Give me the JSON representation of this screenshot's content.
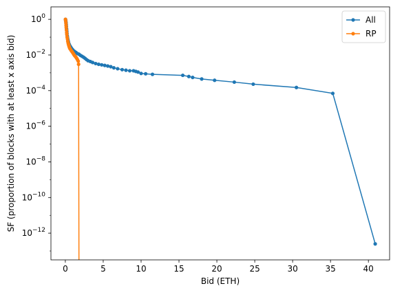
{
  "chart_data": {
    "type": "line",
    "title": "",
    "xlabel": "Bid (ETH)",
    "ylabel": "SF (proportion of blocks with at least x axis bid)",
    "xlim": [
      -1.9,
      42.8
    ],
    "ylim_log10": [
      -13.5,
      0.7
    ],
    "yscale": "log",
    "x_ticks": [
      0,
      5,
      10,
      15,
      20,
      25,
      30,
      35,
      40
    ],
    "y_ticks_log10": [
      0,
      -2,
      -4,
      -6,
      -8,
      -10,
      -12
    ],
    "legend_position": "top-right",
    "grid": false,
    "series": [
      {
        "name": "All",
        "color": "#1f77b4",
        "marker": "circle",
        "points": [
          [
            0.02,
            1.0
          ],
          [
            0.04,
            0.9
          ],
          [
            0.06,
            0.8
          ],
          [
            0.08,
            0.7
          ],
          [
            0.1,
            0.6
          ],
          [
            0.12,
            0.5
          ],
          [
            0.14,
            0.4
          ],
          [
            0.16,
            0.3
          ],
          [
            0.18,
            0.25
          ],
          [
            0.2,
            0.2
          ],
          [
            0.22,
            0.16
          ],
          [
            0.25,
            0.12
          ],
          [
            0.28,
            0.1
          ],
          [
            0.32,
            0.08
          ],
          [
            0.36,
            0.065
          ],
          [
            0.4,
            0.055
          ],
          [
            0.45,
            0.045
          ],
          [
            0.5,
            0.04
          ],
          [
            0.6,
            0.033
          ],
          [
            0.7,
            0.028
          ],
          [
            0.8,
            0.024
          ],
          [
            0.9,
            0.021
          ],
          [
            1.0,
            0.019
          ],
          [
            1.2,
            0.016
          ],
          [
            1.4,
            0.014
          ],
          [
            1.6,
            0.012
          ],
          [
            1.8,
            0.011
          ],
          [
            2.0,
            0.0095
          ],
          [
            2.2,
            0.0085
          ],
          [
            2.4,
            0.0075
          ],
          [
            2.6,
            0.0065
          ],
          [
            2.8,
            0.0055
          ],
          [
            3.0,
            0.0048
          ],
          [
            3.3,
            0.0043
          ],
          [
            3.6,
            0.0038
          ],
          [
            4.0,
            0.0033
          ],
          [
            4.4,
            0.003
          ],
          [
            4.8,
            0.0028
          ],
          [
            5.2,
            0.0026
          ],
          [
            5.6,
            0.0024
          ],
          [
            6.0,
            0.0022
          ],
          [
            6.4,
            0.0019
          ],
          [
            6.9,
            0.0017
          ],
          [
            7.5,
            0.0015
          ],
          [
            8.0,
            0.0014
          ],
          [
            8.5,
            0.0013
          ],
          [
            9.0,
            0.0013
          ],
          [
            9.3,
            0.0012
          ],
          [
            9.6,
            0.0011
          ],
          [
            10.0,
            0.00092
          ],
          [
            10.6,
            0.00088
          ],
          [
            11.5,
            0.00082
          ],
          [
            15.5,
            0.00072
          ],
          [
            16.3,
            0.00062
          ],
          [
            16.8,
            0.00055
          ],
          [
            18.0,
            0.00045
          ],
          [
            19.7,
            0.00038
          ],
          [
            22.3,
            0.0003
          ],
          [
            24.8,
            0.00023
          ],
          [
            30.5,
            0.00015
          ],
          [
            35.3,
            7e-05
          ],
          [
            40.9,
            2.5e-13
          ]
        ]
      },
      {
        "name": "RP",
        "color": "#ff7f0e",
        "marker": "circle",
        "points": [
          [
            0.02,
            1.0
          ],
          [
            0.05,
            0.8
          ],
          [
            0.08,
            0.6
          ],
          [
            0.1,
            0.45
          ],
          [
            0.12,
            0.35
          ],
          [
            0.15,
            0.25
          ],
          [
            0.18,
            0.18
          ],
          [
            0.2,
            0.14
          ],
          [
            0.24,
            0.1
          ],
          [
            0.28,
            0.08
          ],
          [
            0.32,
            0.06
          ],
          [
            0.36,
            0.05
          ],
          [
            0.4,
            0.042
          ],
          [
            0.45,
            0.035
          ],
          [
            0.5,
            0.03
          ],
          [
            0.55,
            0.026
          ],
          [
            0.6,
            0.023
          ],
          [
            0.7,
            0.02
          ],
          [
            0.8,
            0.017
          ],
          [
            0.9,
            0.015
          ],
          [
            1.0,
            0.013
          ],
          [
            1.1,
            0.011
          ],
          [
            1.2,
            0.0095
          ],
          [
            1.3,
            0.0085
          ],
          [
            1.4,
            0.0075
          ],
          [
            1.5,
            0.0065
          ],
          [
            1.6,
            0.0055
          ],
          [
            1.7,
            0.0045
          ],
          [
            1.75,
            0.003
          ],
          [
            1.8,
            1e-14
          ]
        ]
      }
    ]
  }
}
